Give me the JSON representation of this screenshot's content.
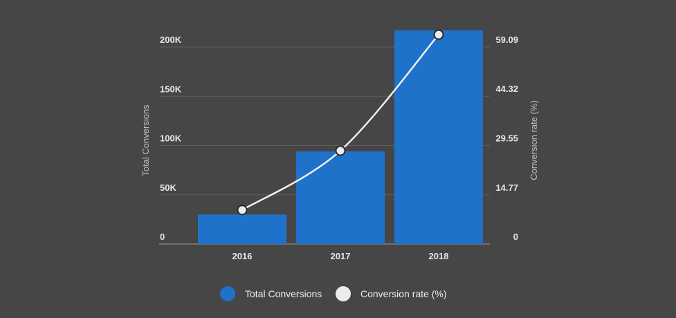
{
  "colors": {
    "background": "#464646",
    "bar": "#1f72c9",
    "line": "#f0f0f0",
    "marker_fill": "#ececec",
    "marker_stroke": "#2a2a2a",
    "grid": "#5f5f5f",
    "baseline": "#9a9a9a"
  },
  "chart_data": {
    "type": "bar",
    "categories": [
      "2016",
      "2017",
      "2018"
    ],
    "series": [
      {
        "name": "Total Conversions",
        "type": "bar",
        "axis": "left",
        "values": [
          30000,
          94000,
          217000
        ]
      },
      {
        "name": "Conversion rate (%)",
        "type": "line",
        "axis": "right",
        "values": [
          10.2,
          28.0,
          62.8
        ]
      }
    ],
    "ylabel": "Total Conversions",
    "y2label": "Conversion rate (%)",
    "ylim": [
      0,
      200000
    ],
    "y2lim": [
      0,
      59.09
    ],
    "yticks": [
      {
        "value": 0,
        "label": "0"
      },
      {
        "value": 50000,
        "label": "50K"
      },
      {
        "value": 100000,
        "label": "100K"
      },
      {
        "value": 150000,
        "label": "150K"
      },
      {
        "value": 200000,
        "label": "200K"
      }
    ],
    "y2ticks": [
      {
        "value": 0,
        "label": "0"
      },
      {
        "value": 14.77,
        "label": "14.77"
      },
      {
        "value": 29.55,
        "label": "29.55"
      },
      {
        "value": 44.32,
        "label": "44.32"
      },
      {
        "value": 59.09,
        "label": "59.09"
      }
    ],
    "grid": true,
    "legend_position": "bottom-center"
  },
  "legend": [
    {
      "label": "Total Conversions",
      "icon": "circle",
      "color": "#1f72c9"
    },
    {
      "label": "Conversion rate (%)",
      "icon": "circle",
      "color": "#ececec"
    }
  ]
}
